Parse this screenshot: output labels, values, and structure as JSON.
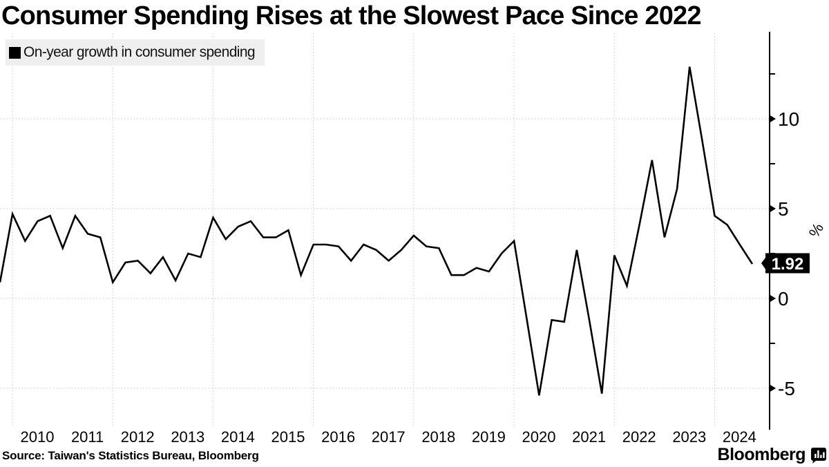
{
  "title": "Consumer Spending Rises at the Slowest Pace Since 2022",
  "legend": {
    "swatch_icon": "black-square-swatch",
    "label": "On-year growth in consumer spending",
    "swatch_color": "#000000",
    "background_color": "#efefef"
  },
  "source_line": "Source: Taiwan's Statistics Bureau, Bloomberg",
  "branding": {
    "logo_text": "Bloomberg",
    "logo_icon": "bloomberg-terminal-bars-icon"
  },
  "axis": {
    "unit_label": "%",
    "side": "right",
    "last_value_label": "1.92",
    "tag_background": "#000000",
    "tag_text_color": "#ffffff"
  },
  "chart_data": {
    "type": "line",
    "title": "Consumer Spending Rises at the Slowest Pace Since 2022",
    "series_name": "On-year growth in consumer spending",
    "ylabel": "%",
    "xlabel": "",
    "ylim": [
      -7.2,
      14.8
    ],
    "grid": true,
    "legend_position": "top-left",
    "line_color": "#000000",
    "grid_color": "#c8c8c8",
    "y_ticks_major": [
      10,
      5,
      0,
      -5
    ],
    "y_ticks_minor": [
      12.5,
      7.5,
      2.5,
      -2.5
    ],
    "x_axis_year_labels": [
      "2010",
      "2011",
      "2012",
      "2013",
      "2014",
      "2015",
      "2016",
      "2017",
      "2018",
      "2019",
      "2020",
      "2021",
      "2022",
      "2023",
      "2024"
    ],
    "x_gridline_years": [
      2010,
      2012,
      2014,
      2016,
      2018,
      2020,
      2022,
      2024
    ],
    "x": [
      "2009 Q3",
      "2009 Q4",
      "2010 Q1",
      "2010 Q2",
      "2010 Q3",
      "2010 Q4",
      "2011 Q1",
      "2011 Q2",
      "2011 Q3",
      "2011 Q4",
      "2012 Q1",
      "2012 Q2",
      "2012 Q3",
      "2012 Q4",
      "2013 Q1",
      "2013 Q2",
      "2013 Q3",
      "2013 Q4",
      "2014 Q1",
      "2014 Q2",
      "2014 Q3",
      "2014 Q4",
      "2015 Q1",
      "2015 Q2",
      "2015 Q3",
      "2015 Q4",
      "2016 Q1",
      "2016 Q2",
      "2016 Q3",
      "2016 Q4",
      "2017 Q1",
      "2017 Q2",
      "2017 Q3",
      "2017 Q4",
      "2018 Q1",
      "2018 Q2",
      "2018 Q3",
      "2018 Q4",
      "2019 Q1",
      "2019 Q2",
      "2019 Q3",
      "2019 Q4",
      "2020 Q1",
      "2020 Q2",
      "2020 Q3",
      "2020 Q4",
      "2021 Q1",
      "2021 Q2",
      "2021 Q3",
      "2021 Q4",
      "2022 Q1",
      "2022 Q2",
      "2022 Q3",
      "2022 Q4",
      "2023 Q1",
      "2023 Q2",
      "2023 Q3",
      "2023 Q4",
      "2024 Q1",
      "2024 Q2",
      "2024 Q3"
    ],
    "values": [
      0.9,
      4.7,
      3.2,
      4.3,
      4.6,
      2.8,
      4.6,
      3.6,
      3.4,
      0.9,
      2.0,
      2.1,
      1.4,
      2.3,
      1.0,
      2.5,
      2.3,
      4.5,
      3.3,
      4.0,
      4.3,
      3.4,
      3.4,
      3.8,
      1.3,
      3.0,
      3.0,
      2.9,
      2.1,
      3.0,
      2.7,
      2.1,
      2.7,
      3.5,
      2.9,
      2.8,
      1.3,
      1.3,
      1.7,
      1.5,
      2.5,
      3.2,
      -1.1,
      -5.4,
      -1.2,
      -1.3,
      2.7,
      -1.2,
      -5.3,
      2.4,
      0.7,
      4.1,
      7.7,
      3.4,
      6.1,
      12.9,
      8.8,
      4.6,
      4.1,
      3.0,
      1.92
    ],
    "last_value": 1.92
  }
}
